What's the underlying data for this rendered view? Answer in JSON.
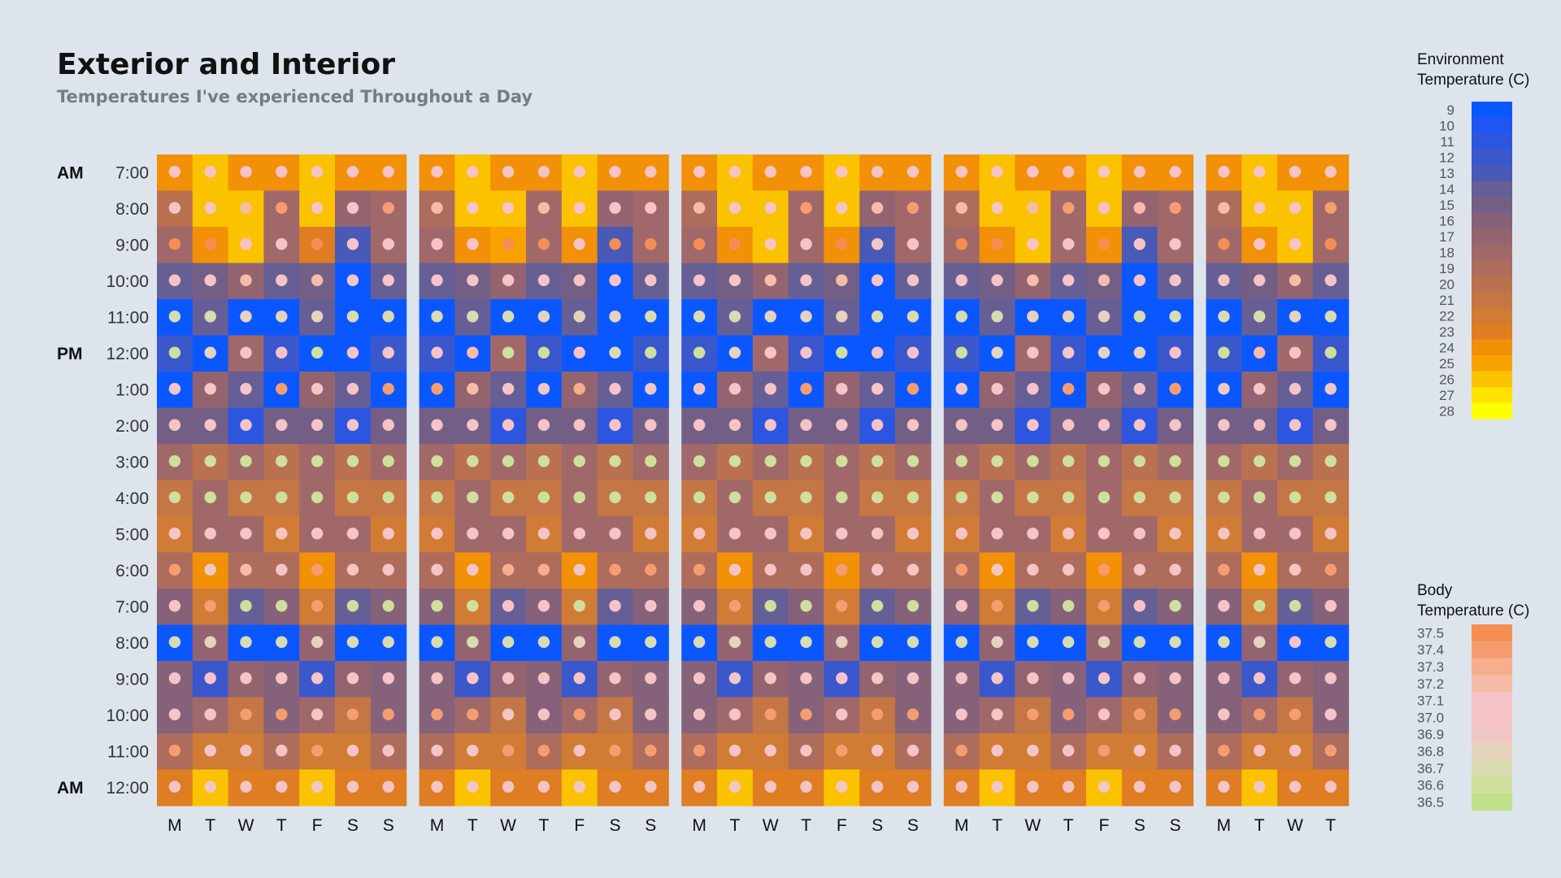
{
  "chart_data": {
    "type": "heatmap",
    "title": "Exterior and Interior",
    "subtitle": "Temperatures I've experienced Throughout a Day",
    "time_labels": [
      "7:00",
      "8:00",
      "9:00",
      "10:00",
      "11:00",
      "12:00",
      "1:00",
      "2:00",
      "3:00",
      "4:00",
      "5:00",
      "6:00",
      "7:00",
      "8:00",
      "9:00",
      "10:00",
      "11:00",
      "12:00"
    ],
    "meridiem_labels": [
      {
        "row": 0,
        "text": "AM"
      },
      {
        "row": 5,
        "text": "PM"
      },
      {
        "row": 17,
        "text": "AM"
      }
    ],
    "weeks": [
      {
        "days": [
          "M",
          "T",
          "W",
          "T",
          "F",
          "S",
          "S"
        ]
      },
      {
        "days": [
          "M",
          "T",
          "W",
          "T",
          "F",
          "S",
          "S"
        ]
      },
      {
        "days": [
          "M",
          "T",
          "W",
          "T",
          "F",
          "S",
          "S"
        ]
      },
      {
        "days": [
          "M",
          "T",
          "W",
          "T",
          "F",
          "S",
          "S"
        ]
      },
      {
        "days": [
          "M",
          "T",
          "W",
          "T"
        ]
      }
    ],
    "environment_temperature": [
      [
        24,
        26,
        24,
        24,
        26,
        24,
        24,
        24,
        26,
        24,
        24,
        26,
        24,
        24,
        24,
        26,
        24,
        24,
        26,
        24,
        24,
        24,
        26,
        24,
        24,
        26,
        24,
        24,
        24,
        26,
        24,
        24
      ],
      [
        20,
        26,
        26,
        18,
        26,
        17,
        18,
        19,
        26,
        26,
        18,
        26,
        17,
        18,
        19,
        26,
        26,
        18,
        26,
        17,
        18,
        19,
        26,
        26,
        18,
        26,
        17,
        18,
        19,
        26,
        26,
        18
      ],
      [
        18,
        24,
        26,
        18,
        23,
        13,
        18,
        18,
        24,
        25,
        18,
        24,
        13,
        18,
        18,
        24,
        26,
        18,
        24,
        13,
        18,
        18,
        24,
        26,
        18,
        24,
        13,
        18,
        18,
        24,
        26,
        18
      ],
      [
        14,
        15,
        17,
        14,
        15,
        9,
        14,
        14,
        15,
        17,
        14,
        15,
        9,
        14,
        14,
        15,
        17,
        14,
        15,
        9,
        14,
        14,
        15,
        17,
        14,
        15,
        9,
        14,
        14,
        15,
        17,
        14
      ],
      [
        9,
        14,
        9,
        9,
        14,
        9,
        9,
        9,
        14,
        9,
        9,
        14,
        9,
        9,
        9,
        14,
        9,
        9,
        14,
        9,
        9,
        9,
        14,
        9,
        9,
        14,
        9,
        9,
        9,
        14,
        9,
        9
      ],
      [
        12,
        9,
        18,
        12,
        9,
        9,
        12,
        12,
        9,
        18,
        12,
        9,
        9,
        12,
        12,
        9,
        18,
        12,
        9,
        9,
        12,
        12,
        9,
        18,
        12,
        9,
        9,
        12,
        12,
        9,
        18,
        12
      ],
      [
        9,
        17,
        14,
        9,
        17,
        14,
        9,
        9,
        17,
        14,
        9,
        17,
        14,
        9,
        9,
        17,
        14,
        9,
        17,
        14,
        9,
        9,
        17,
        14,
        9,
        17,
        14,
        9,
        9,
        17,
        14,
        9
      ],
      [
        15,
        15,
        11,
        15,
        15,
        11,
        15,
        15,
        15,
        11,
        15,
        15,
        11,
        15,
        15,
        15,
        11,
        15,
        15,
        11,
        15,
        15,
        15,
        11,
        15,
        15,
        11,
        15,
        15,
        15,
        11,
        15
      ],
      [
        18,
        20,
        18,
        20,
        18,
        20,
        18,
        18,
        20,
        18,
        20,
        18,
        20,
        18,
        18,
        20,
        18,
        20,
        18,
        20,
        18,
        18,
        20,
        18,
        20,
        18,
        20,
        18,
        18,
        20,
        18,
        20
      ],
      [
        21,
        18,
        21,
        21,
        18,
        21,
        21,
        21,
        18,
        21,
        21,
        18,
        21,
        21,
        21,
        18,
        21,
        21,
        18,
        21,
        21,
        21,
        18,
        21,
        21,
        18,
        21,
        21,
        21,
        18,
        21,
        21
      ],
      [
        22,
        18,
        18,
        22,
        18,
        18,
        22,
        22,
        18,
        18,
        22,
        18,
        18,
        22,
        22,
        18,
        18,
        22,
        18,
        18,
        22,
        22,
        18,
        18,
        22,
        18,
        18,
        22,
        22,
        18,
        18,
        22
      ],
      [
        19,
        24,
        19,
        19,
        24,
        19,
        19,
        19,
        24,
        19,
        19,
        24,
        19,
        19,
        19,
        24,
        19,
        19,
        24,
        19,
        19,
        19,
        24,
        19,
        19,
        24,
        19,
        19,
        19,
        24,
        19,
        19
      ],
      [
        16,
        22,
        14,
        16,
        22,
        14,
        16,
        16,
        22,
        14,
        16,
        22,
        14,
        16,
        16,
        22,
        14,
        16,
        22,
        14,
        16,
        16,
        22,
        14,
        16,
        22,
        14,
        16,
        16,
        22,
        14,
        16
      ],
      [
        9,
        17,
        9,
        9,
        17,
        9,
        9,
        9,
        17,
        9,
        9,
        17,
        9,
        9,
        9,
        17,
        9,
        9,
        17,
        9,
        9,
        9,
        17,
        9,
        9,
        17,
        9,
        9,
        9,
        17,
        9,
        9
      ],
      [
        16,
        12,
        17,
        16,
        12,
        17,
        16,
        16,
        12,
        17,
        16,
        12,
        17,
        16,
        16,
        12,
        17,
        16,
        12,
        17,
        16,
        16,
        12,
        17,
        16,
        12,
        17,
        16,
        16,
        12,
        17,
        16
      ],
      [
        16,
        18,
        21,
        16,
        18,
        21,
        16,
        16,
        18,
        21,
        16,
        18,
        21,
        16,
        16,
        18,
        21,
        16,
        18,
        21,
        16,
        16,
        18,
        21,
        16,
        18,
        21,
        16,
        16,
        18,
        21,
        16
      ],
      [
        19,
        22,
        22,
        19,
        22,
        22,
        19,
        19,
        22,
        22,
        19,
        22,
        22,
        19,
        19,
        22,
        22,
        19,
        22,
        22,
        19,
        19,
        22,
        22,
        19,
        22,
        22,
        19,
        19,
        22,
        22,
        19
      ],
      [
        23,
        26,
        23,
        23,
        26,
        23,
        23,
        23,
        26,
        23,
        23,
        26,
        23,
        23,
        23,
        26,
        23,
        23,
        26,
        23,
        23,
        23,
        26,
        23,
        23,
        26,
        23,
        23,
        23,
        26,
        23,
        23
      ]
    ],
    "body_temperature": [
      [
        37.1,
        37.1,
        37.1,
        37.1,
        37.1,
        37.1,
        37.1,
        37.1,
        37.1,
        37.1,
        37.1,
        37.1,
        37.1,
        37.1,
        37.1,
        37.1,
        37.1,
        37.1,
        37.1,
        37.1,
        37.1,
        37.1,
        37.1,
        37.1,
        37.1,
        37.1,
        37.1,
        37.1,
        37.1,
        37.1,
        37.1,
        37.1
      ],
      [
        37.1,
        37.0,
        37.2,
        37.4,
        37.0,
        37.1,
        37.4,
        37.2,
        37.0,
        37.0,
        37.2,
        37.0,
        37.1,
        37.1,
        37.2,
        37.0,
        37.1,
        37.4,
        37.0,
        37.2,
        37.4,
        37.2,
        37.0,
        37.2,
        37.4,
        37.0,
        37.2,
        37.4,
        37.2,
        37.0,
        37.0,
        37.4
      ],
      [
        37.5,
        37.5,
        37.0,
        37.1,
        37.5,
        37.0,
        37.0,
        37.1,
        37.1,
        37.5,
        37.5,
        37.1,
        37.5,
        37.5,
        37.5,
        37.5,
        37.0,
        37.1,
        37.5,
        37.1,
        37.1,
        37.5,
        37.5,
        37.0,
        37.1,
        37.5,
        37.0,
        37.0,
        37.5,
        37.1,
        37.0,
        37.5
      ],
      [
        37.1,
        37.1,
        37.2,
        37.1,
        37.2,
        37.0,
        37.1,
        37.0,
        37.1,
        37.1,
        37.1,
        37.1,
        37.0,
        37.1,
        37.0,
        37.1,
        37.2,
        37.1,
        37.2,
        37.0,
        37.1,
        37.0,
        37.1,
        37.2,
        37.1,
        37.2,
        37.0,
        37.1,
        37.1,
        37.1,
        37.2,
        37.1
      ],
      [
        36.7,
        36.7,
        36.8,
        36.8,
        36.8,
        36.7,
        36.7,
        36.7,
        36.7,
        36.7,
        36.8,
        36.8,
        36.8,
        36.7,
        36.7,
        36.7,
        36.8,
        36.8,
        36.8,
        36.7,
        36.7,
        36.7,
        36.7,
        36.8,
        36.8,
        36.8,
        36.7,
        36.7,
        36.7,
        36.7,
        36.8,
        36.7
      ],
      [
        36.6,
        36.8,
        37.1,
        37.1,
        36.6,
        37.1,
        37.1,
        37.1,
        37.2,
        36.6,
        36.6,
        37.1,
        36.7,
        36.6,
        36.6,
        36.8,
        37.1,
        37.1,
        36.6,
        37.1,
        37.1,
        36.6,
        36.8,
        37.1,
        37.1,
        36.8,
        36.8,
        37.1,
        36.6,
        37.2,
        37.1,
        36.6
      ],
      [
        36.9,
        37.1,
        37.1,
        37.4,
        37.1,
        37.1,
        37.4,
        37.4,
        37.2,
        37.0,
        36.9,
        37.3,
        37.0,
        36.9,
        36.9,
        37.1,
        37.1,
        37.4,
        37.1,
        37.1,
        37.4,
        36.9,
        37.1,
        37.1,
        37.4,
        37.1,
        37.1,
        37.4,
        36.9,
        37.1,
        37.0,
        36.9
      ],
      [
        37.1,
        37.1,
        37.0,
        37.1,
        37.1,
        37.0,
        37.1,
        37.1,
        37.1,
        37.0,
        37.1,
        37.1,
        37.0,
        37.1,
        37.1,
        37.1,
        37.0,
        37.1,
        37.1,
        37.0,
        37.1,
        37.1,
        37.1,
        37.0,
        37.1,
        37.1,
        37.0,
        37.1,
        37.1,
        37.1,
        37.0,
        37.1
      ],
      [
        36.6,
        36.6,
        36.6,
        36.6,
        36.6,
        36.6,
        36.6,
        36.6,
        36.6,
        36.6,
        36.6,
        36.6,
        36.6,
        36.6,
        36.6,
        36.6,
        36.6,
        36.6,
        36.6,
        36.6,
        36.6,
        36.6,
        36.6,
        36.6,
        36.6,
        36.6,
        36.6,
        36.6,
        36.6,
        36.6,
        36.6,
        36.6
      ],
      [
        36.6,
        36.6,
        36.6,
        36.6,
        36.6,
        36.6,
        36.6,
        36.6,
        36.6,
        36.6,
        36.6,
        36.6,
        36.6,
        36.6,
        36.6,
        36.6,
        36.6,
        36.6,
        36.6,
        36.6,
        36.6,
        36.6,
        36.6,
        36.6,
        36.6,
        36.6,
        36.6,
        36.6,
        36.6,
        36.6,
        36.6,
        36.6
      ],
      [
        37.1,
        37.1,
        37.1,
        37.1,
        37.1,
        37.1,
        37.1,
        37.1,
        37.1,
        37.1,
        37.1,
        37.1,
        37.1,
        37.1,
        37.1,
        37.1,
        37.1,
        37.1,
        37.1,
        37.1,
        37.1,
        37.1,
        37.1,
        37.1,
        37.1,
        37.1,
        37.1,
        37.1,
        37.1,
        37.1,
        37.1,
        37.1
      ],
      [
        37.4,
        36.9,
        37.2,
        37.0,
        37.4,
        37.0,
        37.0,
        37.0,
        36.9,
        37.3,
        37.3,
        36.9,
        37.4,
        37.4,
        37.4,
        36.9,
        37.0,
        37.0,
        37.4,
        37.0,
        37.0,
        37.4,
        36.9,
        37.0,
        37.0,
        37.4,
        37.0,
        37.0,
        37.4,
        36.9,
        37.0,
        37.4
      ],
      [
        37.1,
        37.4,
        36.6,
        36.6,
        37.4,
        36.6,
        36.6,
        36.6,
        36.6,
        37.1,
        37.1,
        36.6,
        37.1,
        37.1,
        37.1,
        37.4,
        36.6,
        36.6,
        37.4,
        36.6,
        36.6,
        37.1,
        37.4,
        36.6,
        36.6,
        37.4,
        37.1,
        36.6,
        37.1,
        36.6,
        36.6,
        37.1
      ],
      [
        36.7,
        36.8,
        36.7,
        36.7,
        36.8,
        36.7,
        36.7,
        36.7,
        36.7,
        36.7,
        36.7,
        36.8,
        36.7,
        36.7,
        36.7,
        36.8,
        36.7,
        36.7,
        36.8,
        36.7,
        36.7,
        36.7,
        36.8,
        36.7,
        36.7,
        36.8,
        36.7,
        36.7,
        36.7,
        36.8,
        37.1,
        36.7
      ],
      [
        37.1,
        37.0,
        37.1,
        37.1,
        37.0,
        37.1,
        37.1,
        37.1,
        37.0,
        37.1,
        37.1,
        37.0,
        37.1,
        37.1,
        37.1,
        37.0,
        37.1,
        37.1,
        37.0,
        37.1,
        37.1,
        37.1,
        37.0,
        37.1,
        37.1,
        37.0,
        37.1,
        37.1,
        37.1,
        37.0,
        37.1,
        37.1
      ],
      [
        37.1,
        37.1,
        37.4,
        37.4,
        37.1,
        37.4,
        37.4,
        37.4,
        37.4,
        37.1,
        37.1,
        37.4,
        37.1,
        37.1,
        37.1,
        37.1,
        37.4,
        37.4,
        37.1,
        37.4,
        37.4,
        37.1,
        37.1,
        37.4,
        37.4,
        37.1,
        37.4,
        37.4,
        37.1,
        37.4,
        37.4,
        37.1
      ],
      [
        37.4,
        37.1,
        37.1,
        37.1,
        37.4,
        37.1,
        37.1,
        37.1,
        37.1,
        37.4,
        37.4,
        37.1,
        37.4,
        37.4,
        37.4,
        37.1,
        37.1,
        37.1,
        37.4,
        37.1,
        37.1,
        37.4,
        37.1,
        37.1,
        37.1,
        37.4,
        37.1,
        37.1,
        37.4,
        37.1,
        37.1,
        37.4
      ],
      [
        37.1,
        36.9,
        37.1,
        37.1,
        36.9,
        37.1,
        37.1,
        37.1,
        36.9,
        37.1,
        37.1,
        36.9,
        37.1,
        37.1,
        37.1,
        36.9,
        37.1,
        37.1,
        36.9,
        37.1,
        37.1,
        37.1,
        36.9,
        37.1,
        37.1,
        36.9,
        37.1,
        37.1,
        37.1,
        36.9,
        37.1,
        37.1
      ]
    ],
    "legend_environment": {
      "title": [
        "Environment",
        "Temperature (C)"
      ],
      "min": 9,
      "max": 28,
      "ticks": [
        "9",
        "10",
        "11",
        "12",
        "13",
        "14",
        "15",
        "16",
        "17",
        "18",
        "19",
        "20",
        "21",
        "22",
        "23",
        "24",
        "25",
        "26",
        "27",
        "28"
      ]
    },
    "legend_body": {
      "title": [
        "Body",
        "Temperature (C)"
      ],
      "ticks": [
        "37.5",
        "37.4",
        "37.3",
        "37.2",
        "37.1",
        "37.0",
        "36.9",
        "36.8",
        "36.7",
        "36.6",
        "36.5"
      ]
    },
    "colors": {
      "background": "#dde4ec",
      "environment_scale": [
        "#0b57ff",
        "#1f55f0",
        "#2d56e0",
        "#3a57cc",
        "#4859b6",
        "#555ca4",
        "#655f95",
        "#735f85",
        "#85627a",
        "#936470",
        "#a1686a",
        "#ad6c5c",
        "#b97150",
        "#c47645",
        "#d07c35",
        "#de7d22",
        "#ec8013",
        "#f29007",
        "#f8a200",
        "#fbc200",
        "#fde200",
        "#ffff00"
      ],
      "body_scale": [
        "#c0e08a",
        "#cfdf9c",
        "#d9dbb0",
        "#e6d3bd",
        "#f1c7c6",
        "#f6c4c6",
        "#f6bca7",
        "#f6ae8d",
        "#f59d70",
        "#f58e52"
      ]
    }
  }
}
